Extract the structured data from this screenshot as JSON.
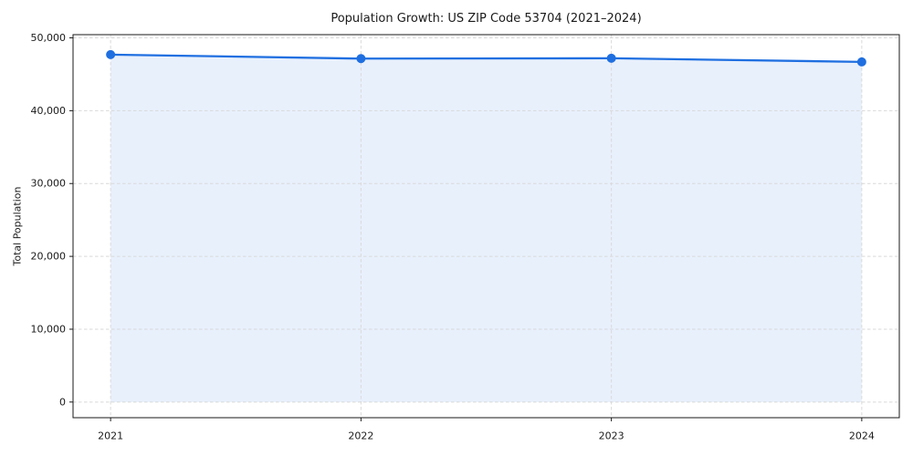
{
  "chart_data": {
    "type": "line",
    "title": "Population Growth: US ZIP Code 53704 (2021–2024)",
    "xlabel": "",
    "ylabel": "Total Population",
    "x": [
      2021,
      2022,
      2023,
      2024
    ],
    "x_tick_labels": [
      "2021",
      "2022",
      "2023",
      "2024"
    ],
    "values": [
      47700,
      47150,
      47200,
      46700
    ],
    "y_ticks": [
      0,
      10000,
      20000,
      30000,
      40000,
      50000
    ],
    "y_tick_labels": [
      "0",
      "10,000",
      "20,000",
      "30,000",
      "40,000",
      "50,000"
    ],
    "xlim": [
      2020.85,
      2024.15
    ],
    "ylim": [
      -2150,
      50440
    ],
    "grid": true,
    "legend": "none",
    "area_fill": true,
    "area_baseline": 0,
    "colors": {
      "line": "#1f6fe0",
      "fill": "#1f6fe0",
      "fill_opacity": 0.1,
      "grid": "#d9d9d9",
      "spine": "#1a1a1a",
      "text": "#1a1a1a",
      "background": "#ffffff"
    }
  }
}
